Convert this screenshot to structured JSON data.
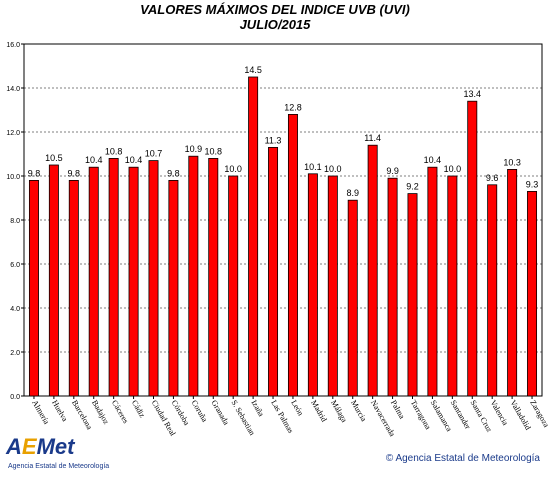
{
  "chart_data": {
    "type": "bar",
    "title": "VALORES MÁXIMOS DEL INDICE UVB (UVI)",
    "subtitle": "JULIO/2015",
    "xlabel": "",
    "ylabel": "",
    "ylim": [
      0,
      16
    ],
    "yticks": [
      "0.0",
      "2.0",
      "4.0",
      "6.0",
      "8.0",
      "10.0",
      "12.0",
      "14.0",
      "16.0"
    ],
    "grid": true,
    "bar_color": "#ff0000",
    "categories": [
      "Almería",
      "Huelva",
      "Barcelona",
      "Badajoz",
      "Cáceres",
      "Cádiz",
      "Ciudad Real",
      "Córdoba",
      "Coruña",
      "Granada",
      "S. Sebastian",
      "Izaña",
      "Las Palmas",
      "León",
      "Madrid",
      "Málaga",
      "Murcia",
      "Navacerrada",
      "Palma",
      "Tarragona",
      "Salamanca",
      "Santander",
      "Santa Cruz",
      "Valencia",
      "Valladolid",
      "Zaragoza"
    ],
    "values": [
      9.8,
      10.5,
      9.8,
      10.4,
      10.8,
      10.4,
      10.7,
      9.8,
      10.9,
      10.8,
      10.0,
      14.5,
      11.3,
      12.8,
      10.1,
      10.0,
      8.9,
      11.4,
      9.9,
      9.2,
      10.4,
      10.0,
      13.4,
      9.6,
      10.3,
      9.3
    ],
    "value_labels": [
      "9.8",
      "10.5",
      "9.8",
      "10.4",
      "10.8",
      "10.4",
      "10.7",
      "9.8",
      "10.9",
      "10.8",
      "10.0",
      "14.5",
      "11.3",
      "12.8",
      "10.1",
      "10.0",
      "8.9",
      "11.4",
      "9.9",
      "9.2",
      "10.4",
      "10.0",
      "13.4",
      "9.6",
      "10.3",
      "9.3"
    ]
  },
  "logo": {
    "text": "AEMet",
    "subtitle": "Agencia Estatal de Meteorología"
  },
  "credit": "© Agencia Estatal de Meteorología"
}
